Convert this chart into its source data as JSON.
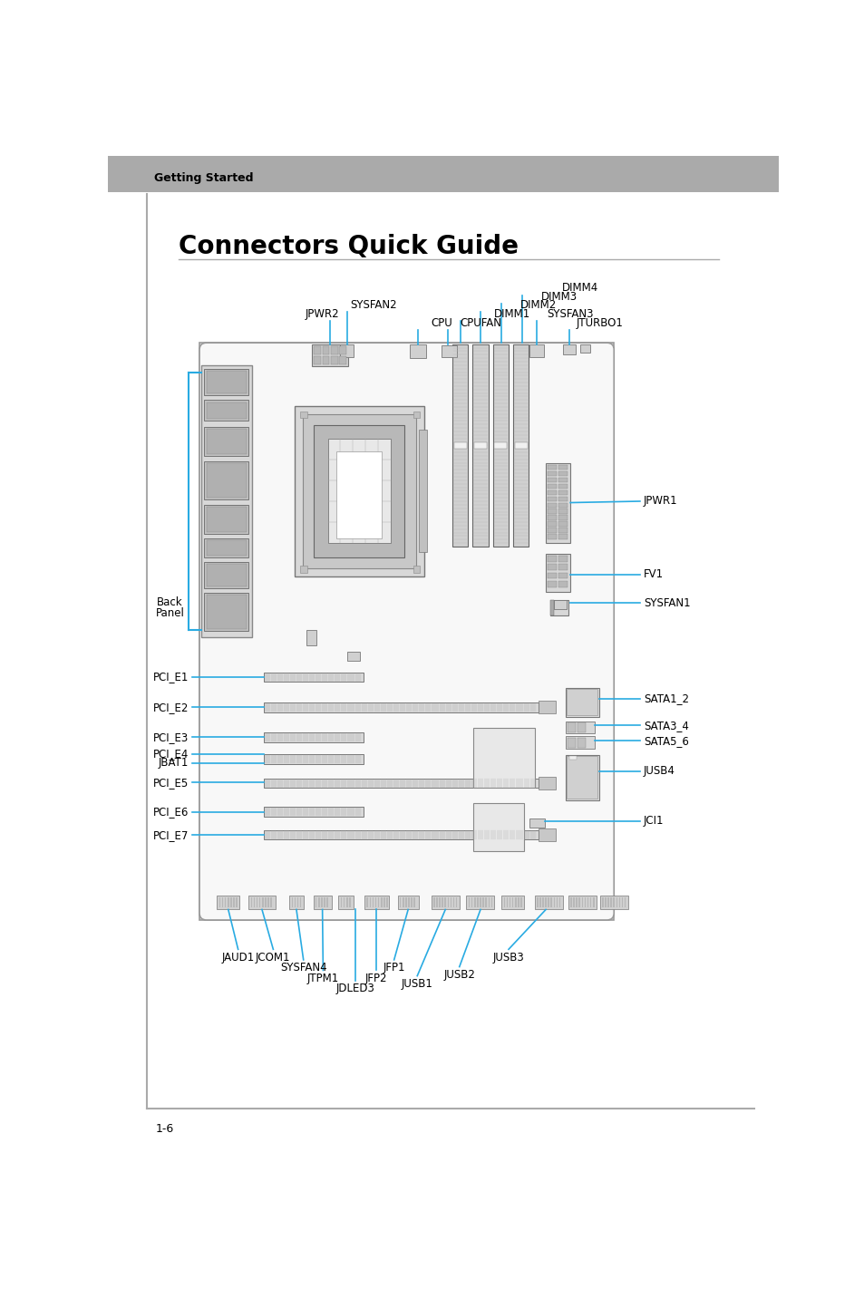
{
  "bg_color": "#ffffff",
  "header_text": "Getting Started",
  "header_bar_color": "#aaaaaa",
  "title": "Connectors Quick Guide",
  "page_number": "1-6",
  "line_color": "#29abe2",
  "text_color": "#000000",
  "label_fontsize": 8.5,
  "title_fontsize": 20,
  "header_fontsize": 9,
  "page_bg": "#ffffff",
  "board_color": "#f5f5f5",
  "board_edge": "#888888",
  "component_light": "#e0e0e0",
  "component_mid": "#cccccc",
  "component_dark": "#aaaaaa",
  "slot_dark": "#888888"
}
